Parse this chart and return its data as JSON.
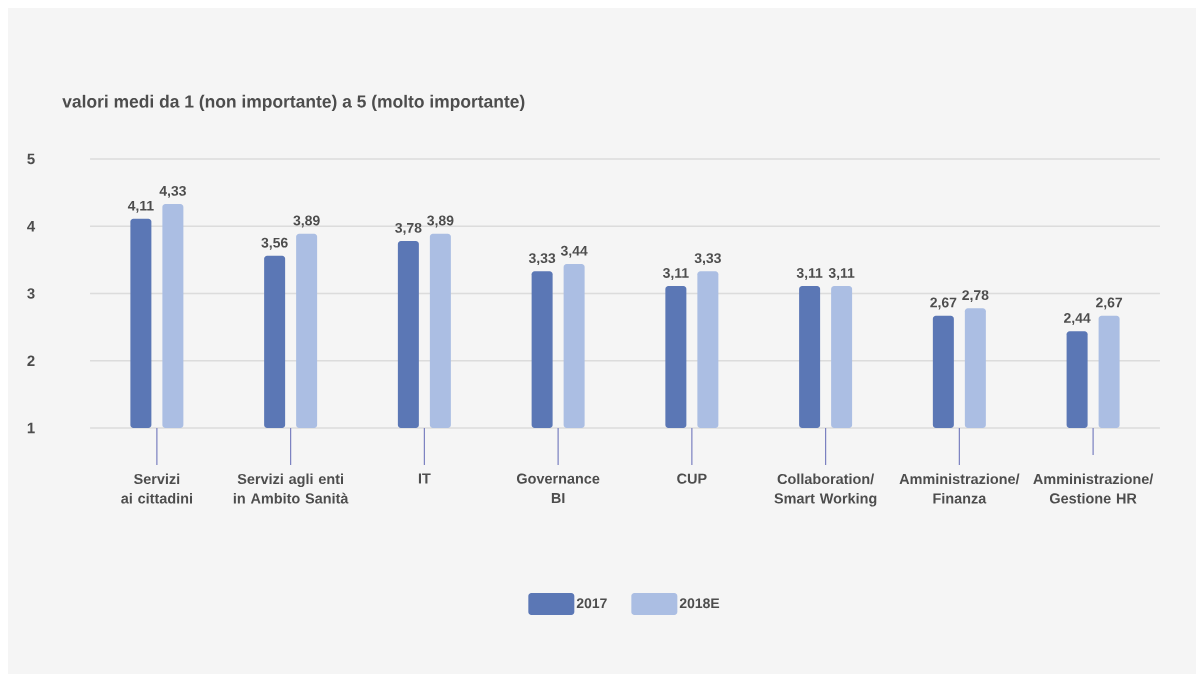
{
  "chart_data": {
    "type": "bar",
    "title": "valori medi da 1 (non importante) a 5 (molto importante)",
    "categories": [
      "Servizi\nai cittadini",
      "Servizi agli enti\nin Ambito Sanità",
      "IT",
      "Governance\nBI",
      "CUP",
      "Collaboration/\nSmart Working",
      "Amministrazione/\nFinanza",
      "Amministrazione/\nGestione HR"
    ],
    "series": [
      {
        "name": "2017",
        "color": "#5b77b5",
        "values": [
          4.11,
          3.56,
          3.78,
          3.33,
          3.11,
          3.11,
          2.67,
          2.44
        ],
        "value_labels": [
          "4,11",
          "3,56",
          "3,78",
          "3,33",
          "3,11",
          "3,11",
          "2,67",
          "2,44"
        ]
      },
      {
        "name": "2018E",
        "color": "#abbee3",
        "values": [
          4.33,
          3.89,
          3.89,
          3.44,
          3.33,
          3.11,
          2.78,
          2.67
        ],
        "value_labels": [
          "4,33",
          "3,89",
          "3,89",
          "3,44",
          "3,33",
          "3,11",
          "2,78",
          "2,67"
        ]
      }
    ],
    "ylim": [
      1,
      5
    ],
    "yticks": [
      1,
      2,
      3,
      4,
      5
    ],
    "grid": "y",
    "legend": "bottom"
  }
}
